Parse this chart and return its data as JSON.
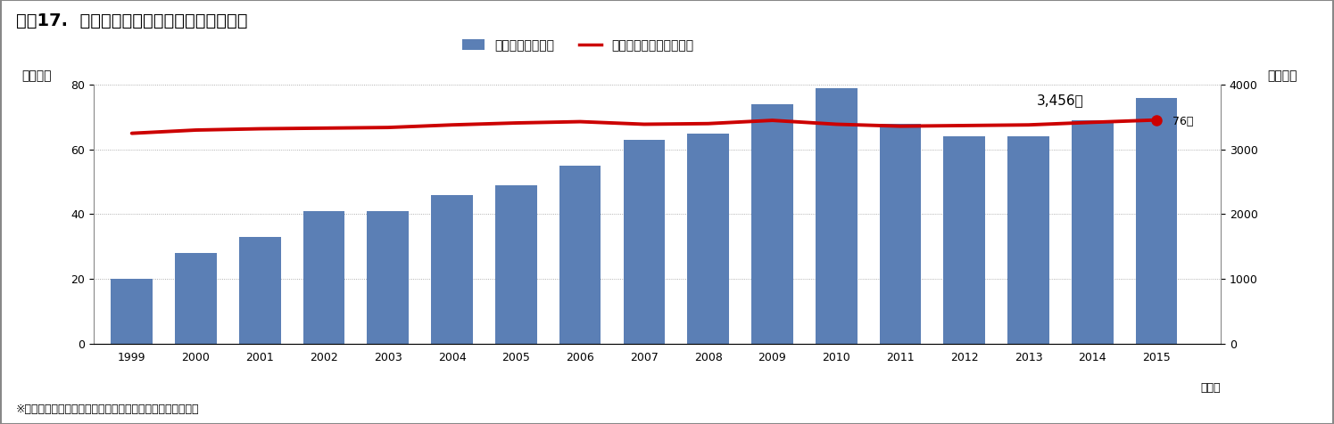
{
  "title": "図表17.  消防防災ヘリの配備と救急出動状況",
  "years": [
    1999,
    2000,
    2001,
    2002,
    2003,
    2004,
    2005,
    2006,
    2007,
    2008,
    2009,
    2010,
    2011,
    2012,
    2013,
    2014,
    2015
  ],
  "bar_values": [
    20,
    28,
    33,
    41,
    41,
    46,
    49,
    55,
    63,
    65,
    74,
    79,
    68,
    64,
    64,
    69,
    76
  ],
  "line_values": [
    3250,
    3300,
    3320,
    3330,
    3340,
    3380,
    3410,
    3430,
    3390,
    3400,
    3450,
    3390,
    3360,
    3370,
    3380,
    3420,
    3456
  ],
  "bar_color": "#5b7fb5",
  "line_color": "#cc0000",
  "bar_label": "出動回数（右軸）",
  "line_label": "防災ヘリ配備数（左軸）",
  "ylabel_left": "（機数）",
  "ylabel_right": "（回数）",
  "xlabel": "（年）",
  "ylim_left": [
    0,
    80
  ],
  "ylim_right": [
    0,
    4000
  ],
  "yticks_left": [
    0,
    20,
    40,
    60,
    80
  ],
  "yticks_right": [
    0,
    1000,
    2000,
    3000,
    4000
  ],
  "annotation_value": "3,456回",
  "end_label": "76機",
  "footnote": "※　「救急・救助の現況」（総務省消防庁）より、筆者作成",
  "background_color": "#ffffff",
  "border_color": "#aaaaaa",
  "grid_color": "#999999",
  "title_fontsize": 14,
  "axis_fontsize": 10,
  "tick_fontsize": 9,
  "legend_fontsize": 10
}
